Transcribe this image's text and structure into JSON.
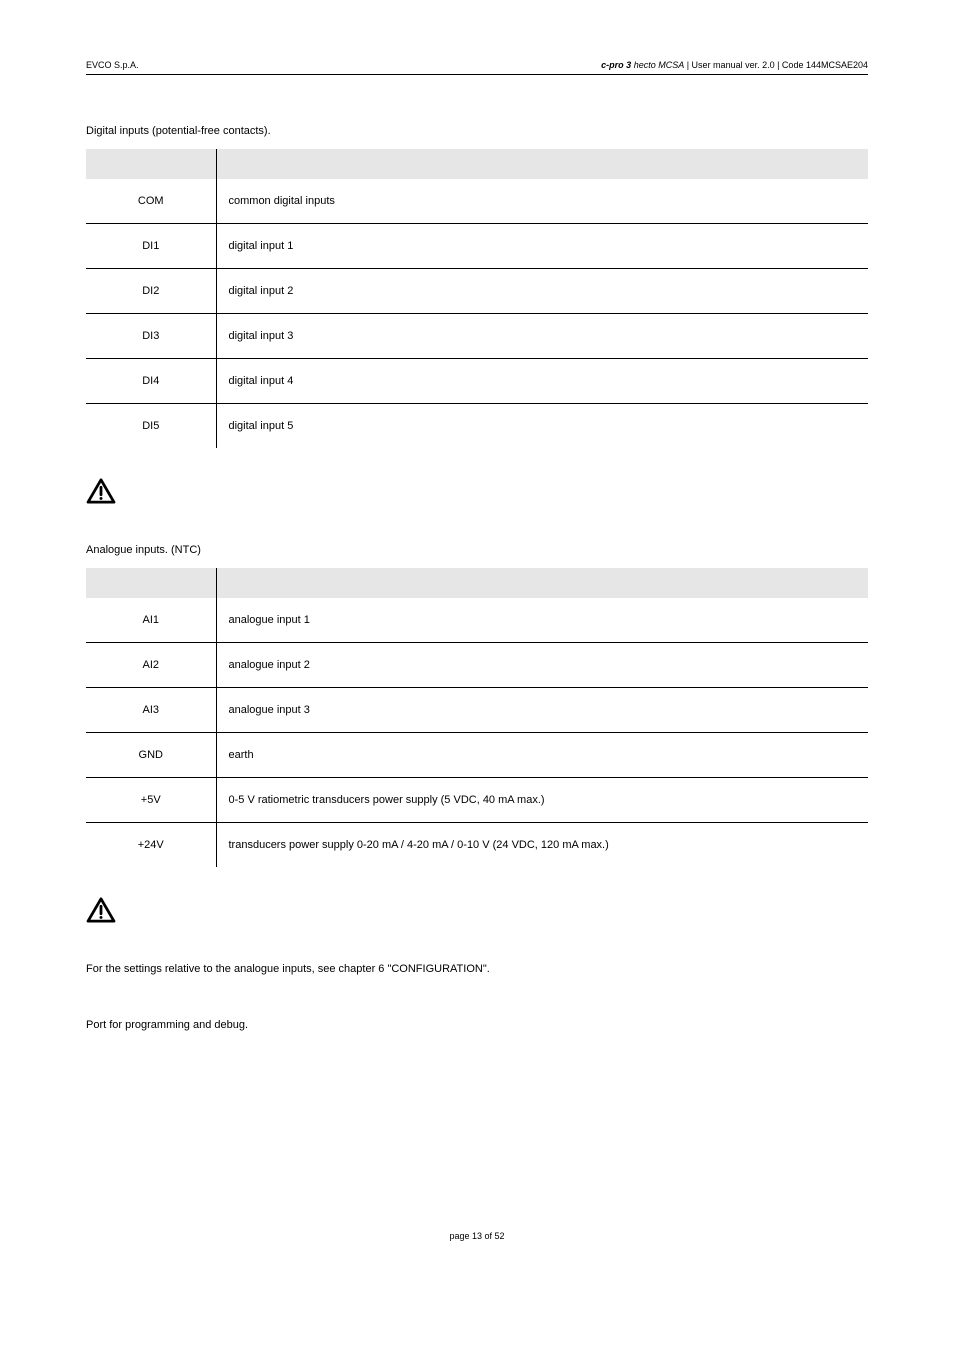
{
  "header": {
    "left": "EVCO S.p.A.",
    "right_bolditalic": "c-pro 3",
    "right_italic": " hecto MCSA",
    "right_plain": " | User manual ver. 2.0 | Code 144MCSAE204"
  },
  "section1": {
    "title": "Digital inputs (potential-free contacts).",
    "rows": [
      {
        "c0": "COM",
        "c1": "common digital inputs"
      },
      {
        "c0": "DI1",
        "c1": "digital input 1"
      },
      {
        "c0": "DI2",
        "c1": "digital input 2"
      },
      {
        "c0": "DI3",
        "c1": "digital input 3"
      },
      {
        "c0": "DI4",
        "c1": "digital input 4"
      },
      {
        "c0": "DI5",
        "c1": "digital input 5"
      }
    ]
  },
  "section2": {
    "title": "Analogue inputs. (NTC)",
    "rows": [
      {
        "c0": "AI1",
        "c1": "analogue input 1"
      },
      {
        "c0": "AI2",
        "c1": "analogue input 2"
      },
      {
        "c0": "AI3",
        "c1": "analogue input 3"
      },
      {
        "c0": "GND",
        "c1": "earth"
      },
      {
        "c0": "+5V",
        "c1": "0-5 V ratiometric transducers power supply (5 VDC, 40 mA max.)"
      },
      {
        "c0": "+24V",
        "c1": "transducers power supply 0-20 mA / 4-20 mA / 0-10 V (24 VDC, 120 mA max.)"
      }
    ]
  },
  "note1": "For the settings relative to the analogue inputs, see chapter 6 \"CONFIGURATION\".",
  "note2": "Port for programming and debug.",
  "footer": "page 13 of 52",
  "colors": {
    "header_bg": "#e6e6e6",
    "border": "#000000",
    "text": "#000000"
  }
}
